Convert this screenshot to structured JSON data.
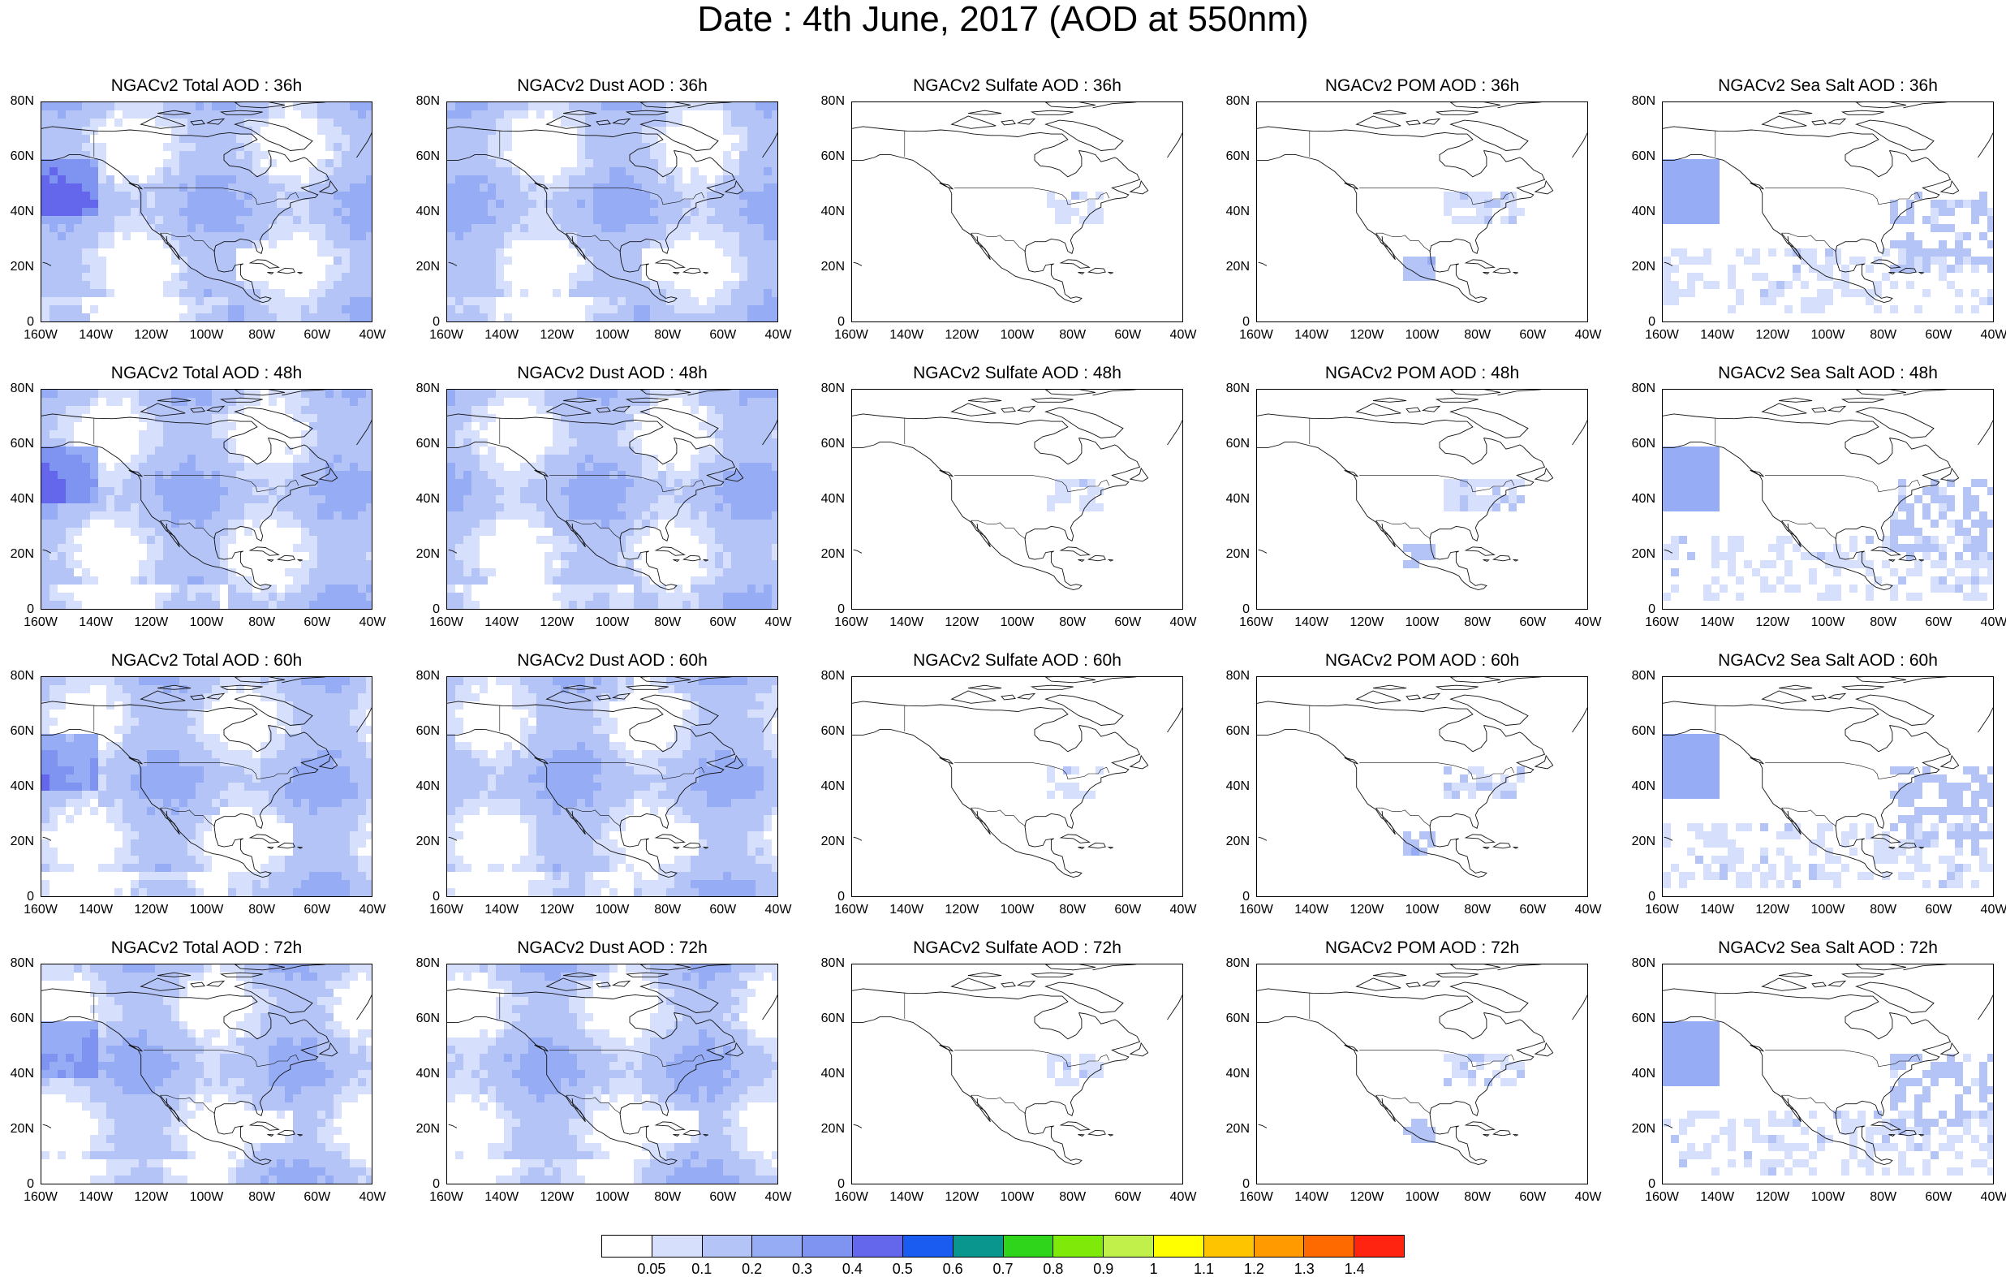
{
  "title": "Date : 4th June, 2017 (AOD at 550nm)",
  "columns": [
    {
      "key": "total",
      "color": "#a6b8f5",
      "intensity": "high"
    },
    {
      "key": "dust",
      "color": "#b4c4f7",
      "intensity": "medium"
    },
    {
      "key": "sulfate",
      "color": "#c9d5fa",
      "intensity": "low"
    },
    {
      "key": "pom",
      "color": "#b9c8f8",
      "intensity": "low"
    },
    {
      "key": "seasalt",
      "color": "#a9bbf6",
      "intensity": "medium"
    }
  ],
  "rows": [
    {
      "lead": "36h",
      "titles": [
        "NGACv2 Total AOD : 36h",
        "NGACv2 Dust AOD : 36h",
        "NGACv2 Sulfate AOD : 36h",
        "NGACv2 POM AOD : 36h",
        "NGACv2 Sea Salt AOD : 36h"
      ]
    },
    {
      "lead": "48h",
      "titles": [
        "NGACv2 Total AOD : 48h",
        "NGACv2 Dust AOD : 48h",
        "NGACv2 Sulfate AOD : 48h",
        "NGACv2 POM AOD : 48h",
        "NGACv2 Sea Salt AOD : 48h"
      ]
    },
    {
      "lead": "60h",
      "titles": [
        "NGACv2 Total AOD : 60h",
        "NGACv2 Dust AOD : 60h",
        "NGACv2 Sulfate AOD : 60h",
        "NGACv2 POM AOD : 60h",
        "NGACv2 Sea Salt AOD : 60h"
      ]
    },
    {
      "lead": "72h",
      "titles": [
        "NGACv2 Total AOD : 72h",
        "NGACv2 Dust AOD : 72h",
        "NGACv2 Sulfate AOD : 72h",
        "NGACv2 POM AOD : 72h",
        "NGACv2 Sea Salt  AOD : 72h"
      ]
    }
  ],
  "x_ticks": [
    "160W",
    "140W",
    "120W",
    "100W",
    "80W",
    "60W",
    "40W"
  ],
  "y_ticks": [
    "0",
    "20N",
    "40N",
    "60N",
    "80N"
  ],
  "extent": {
    "lon": [
      -160,
      -40
    ],
    "lat": [
      0,
      80
    ]
  },
  "colorbar": {
    "labels": [
      "0.05",
      "0.1",
      "0.2",
      "0.3",
      "0.4",
      "0.5",
      "0.6",
      "0.7",
      "0.8",
      "0.9",
      "1",
      "1.1",
      "1.2",
      "1.3",
      "1.4"
    ],
    "colors": [
      "#ffffff",
      "#d6dffb",
      "#b4c4f7",
      "#96acf4",
      "#7f93f0",
      "#6466ec",
      "#1a5cf0",
      "#08968f",
      "#2fd51a",
      "#7fea0a",
      "#c2f04a",
      "#ffff00",
      "#ffc400",
      "#ff9a00",
      "#ff6a00",
      "#ff2410"
    ]
  }
}
